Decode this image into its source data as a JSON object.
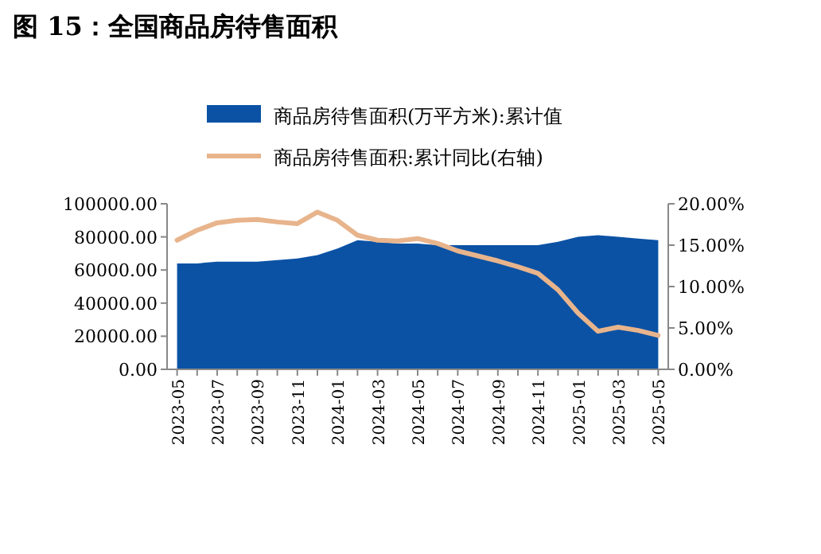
{
  "chart_data": {
    "type": "area",
    "title": "图 15：全国商品房待售面积",
    "categories": [
      "2023-05",
      null,
      "2023-07",
      null,
      "2023-09",
      null,
      "2023-11",
      null,
      "2024-01",
      null,
      "2024-03",
      null,
      "2024-05",
      null,
      "2024-07",
      null,
      "2024-09",
      null,
      "2024-11",
      null,
      "2025-01",
      null,
      "2025-03",
      null,
      "2025-05"
    ],
    "series": [
      {
        "name": "商品房待售面积(万平方米):累计值",
        "color": "#0b52a5",
        "values": [
          64000,
          64000,
          65000,
          65000,
          65000,
          66000,
          67000,
          69000,
          73000,
          78000,
          77000,
          76000,
          76000,
          75000,
          75000,
          75000,
          75000,
          75000,
          75000,
          77000,
          80000,
          81000,
          80000,
          79000,
          78000
        ]
      },
      {
        "name": "商品房待售面积:累计同比(右轴)",
        "type": "line",
        "axis": "y2",
        "color": "#e8b48c",
        "values": [
          15.6,
          16.8,
          17.7,
          18.0,
          18.1,
          17.8,
          17.6,
          19.0,
          18.0,
          16.2,
          15.6,
          15.5,
          15.8,
          15.2,
          14.3,
          13.7,
          13.1,
          12.4,
          11.6,
          9.6,
          6.8,
          4.6,
          5.1,
          4.7,
          4.1
        ]
      }
    ],
    "ylim": [
      0,
      100000
    ],
    "yticks": [
      {
        "value": 0,
        "label": "0.00"
      },
      {
        "value": 20000,
        "label": "20000.00"
      },
      {
        "value": 40000,
        "label": "40000.00"
      },
      {
        "value": 60000,
        "label": "60000.00"
      },
      {
        "value": 80000,
        "label": "80000.00"
      },
      {
        "value": 100000,
        "label": "100000.00"
      }
    ],
    "y2lim": [
      0,
      20
    ],
    "y2ticks": [
      {
        "value": 0,
        "label": "0.00%"
      },
      {
        "value": 5,
        "label": "5.00%"
      },
      {
        "value": 10,
        "label": "10.00%"
      },
      {
        "value": 15,
        "label": "15.00%"
      },
      {
        "value": 20,
        "label": "20.00%"
      }
    ],
    "legend": "top",
    "grid": false
  }
}
